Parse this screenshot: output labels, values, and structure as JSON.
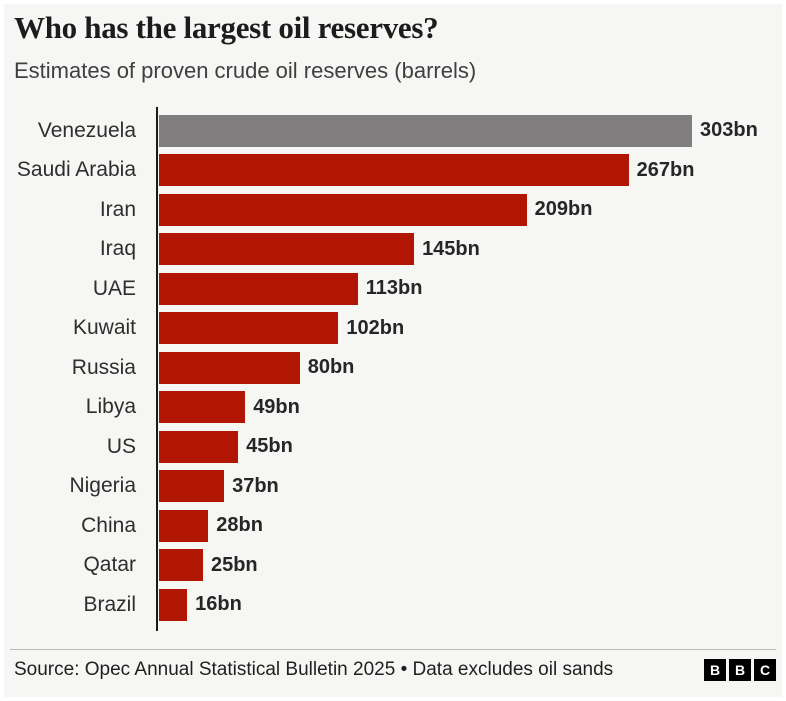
{
  "header": {
    "title": "Who has the largest oil reserves?",
    "subtitle": "Estimates of proven crude oil reserves (barrels)"
  },
  "chart_data": {
    "type": "bar",
    "orientation": "horizontal",
    "title": "Who has the largest oil reserves?",
    "subtitle": "Estimates of proven crude oil reserves (barrels)",
    "categories": [
      "Venezuela",
      "Saudi Arabia",
      "Iran",
      "Iraq",
      "UAE",
      "Kuwait",
      "Russia",
      "Libya",
      "US",
      "Nigeria",
      "China",
      "Qatar",
      "Brazil"
    ],
    "values": [
      303,
      267,
      209,
      145,
      113,
      102,
      80,
      49,
      45,
      37,
      28,
      25,
      16
    ],
    "value_labels": [
      "303bn",
      "267bn",
      "209bn",
      "145bn",
      "113bn",
      "102bn",
      "80bn",
      "49bn",
      "45bn",
      "37bn",
      "28bn",
      "25bn",
      "16bn"
    ],
    "unit": "bn",
    "xlim": [
      0,
      303
    ],
    "grid": false,
    "legend": false,
    "highlight_index": 0,
    "colors": {
      "default": "#b01602",
      "highlight": "#7f7d7d",
      "axis": "#1a1a1a",
      "background": "#f6f6f4"
    }
  },
  "footer": {
    "source": "Source: Opec Annual Statistical Bulletin 2025 • Data excludes oil sands",
    "logo_letters": [
      "B",
      "B",
      "C"
    ]
  }
}
